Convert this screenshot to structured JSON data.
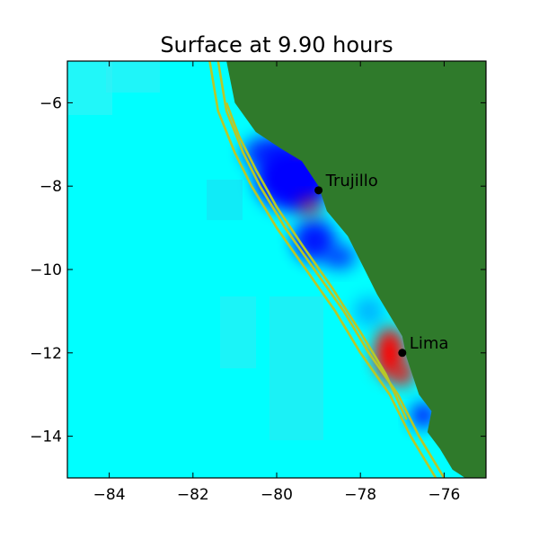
{
  "chart_data": {
    "type": "heatmap",
    "title": "Surface at 9.90 hours",
    "xlim": [
      -85,
      -75
    ],
    "ylim": [
      -15,
      -5
    ],
    "xticks": [
      -84,
      -82,
      -80,
      -78,
      -76
    ],
    "yticks": [
      -6,
      -8,
      -10,
      -12,
      -14
    ],
    "xtick_labels": [
      "−84",
      "−82",
      "−80",
      "−78",
      "−76"
    ],
    "ytick_labels": [
      "−6",
      "−8",
      "−10",
      "−12",
      "−14"
    ],
    "grid": false,
    "colors": {
      "ocean": "#00ffff",
      "land": "#2f7a2b",
      "contour": "#b8c828",
      "high": "#ff0000",
      "low": "#0000ff"
    },
    "coastline": [
      [
        -81.2,
        -5.0
      ],
      [
        -81.0,
        -6.0
      ],
      [
        -80.5,
        -6.7
      ],
      [
        -79.9,
        -7.1
      ],
      [
        -79.4,
        -7.4
      ],
      [
        -79.0,
        -8.0
      ],
      [
        -78.8,
        -8.6
      ],
      [
        -78.3,
        -9.2
      ],
      [
        -78.1,
        -9.6
      ],
      [
        -77.9,
        -10.0
      ],
      [
        -77.6,
        -10.6
      ],
      [
        -77.3,
        -11.1
      ],
      [
        -77.0,
        -11.6
      ],
      [
        -76.9,
        -12.1
      ],
      [
        -76.8,
        -12.4
      ],
      [
        -76.6,
        -13.0
      ],
      [
        -76.3,
        -13.4
      ],
      [
        -76.4,
        -13.9
      ],
      [
        -76.1,
        -14.3
      ],
      [
        -75.8,
        -14.8
      ],
      [
        -75.5,
        -15.0
      ]
    ],
    "contours": [
      [
        [
          -81.6,
          -5.0
        ],
        [
          -81.4,
          -6.2
        ],
        [
          -81.0,
          -7.2
        ],
        [
          -80.6,
          -8.0
        ],
        [
          -80.0,
          -9.0
        ],
        [
          -79.3,
          -10.0
        ],
        [
          -78.6,
          -11.0
        ],
        [
          -78.0,
          -12.0
        ],
        [
          -77.3,
          -13.0
        ],
        [
          -76.8,
          -14.0
        ],
        [
          -76.2,
          -15.0
        ]
      ],
      [
        [
          -81.4,
          -5.0
        ],
        [
          -81.2,
          -6.2
        ],
        [
          -80.8,
          -7.2
        ],
        [
          -80.4,
          -8.0
        ],
        [
          -79.8,
          -9.0
        ],
        [
          -79.1,
          -10.0
        ],
        [
          -78.4,
          -11.0
        ],
        [
          -77.8,
          -12.0
        ],
        [
          -77.1,
          -13.0
        ],
        [
          -76.6,
          -14.0
        ],
        [
          -76.0,
          -15.0
        ]
      ],
      [
        [
          -81.2,
          -6.0
        ],
        [
          -80.9,
          -6.8
        ],
        [
          -80.5,
          -7.6
        ],
        [
          -80.0,
          -8.5
        ],
        [
          -79.4,
          -9.4
        ],
        [
          -78.7,
          -10.4
        ],
        [
          -78.0,
          -11.5
        ],
        [
          -77.4,
          -12.5
        ],
        [
          -76.9,
          -13.6
        ]
      ]
    ],
    "anomalies": [
      {
        "lon": -79.6,
        "lat": -7.8,
        "sign": "low",
        "strength": 1.0,
        "rx": 0.9,
        "ry": 0.8
      },
      {
        "lon": -80.2,
        "lat": -7.2,
        "sign": "low",
        "strength": 0.8,
        "rx": 0.6,
        "ry": 0.4
      },
      {
        "lon": -79.1,
        "lat": -9.3,
        "sign": "low",
        "strength": 0.9,
        "rx": 0.5,
        "ry": 0.5
      },
      {
        "lon": -78.5,
        "lat": -9.7,
        "sign": "low",
        "strength": 0.7,
        "rx": 0.4,
        "ry": 0.3
      },
      {
        "lon": -79.2,
        "lat": -8.5,
        "sign": "high",
        "strength": 0.5,
        "rx": 0.3,
        "ry": 0.25
      },
      {
        "lon": -79.3,
        "lat": -7.1,
        "sign": "high",
        "strength": 0.6,
        "rx": 0.2,
        "ry": 0.15
      },
      {
        "lon": -77.3,
        "lat": -12.0,
        "sign": "high",
        "strength": 1.0,
        "rx": 0.35,
        "ry": 0.6
      },
      {
        "lon": -77.0,
        "lat": -12.5,
        "sign": "high",
        "strength": 0.8,
        "rx": 0.3,
        "ry": 0.3
      },
      {
        "lon": -76.5,
        "lat": -13.5,
        "sign": "low",
        "strength": 0.9,
        "rx": 0.3,
        "ry": 0.3
      },
      {
        "lon": -77.8,
        "lat": -11.0,
        "sign": "low",
        "strength": 0.3,
        "rx": 0.35,
        "ry": 0.35
      }
    ],
    "cities": [
      {
        "name": "Trujillo",
        "lon": -79.0,
        "lat": -8.1
      },
      {
        "name": "Lima",
        "lon": -77.0,
        "lat": -12.0
      }
    ]
  }
}
